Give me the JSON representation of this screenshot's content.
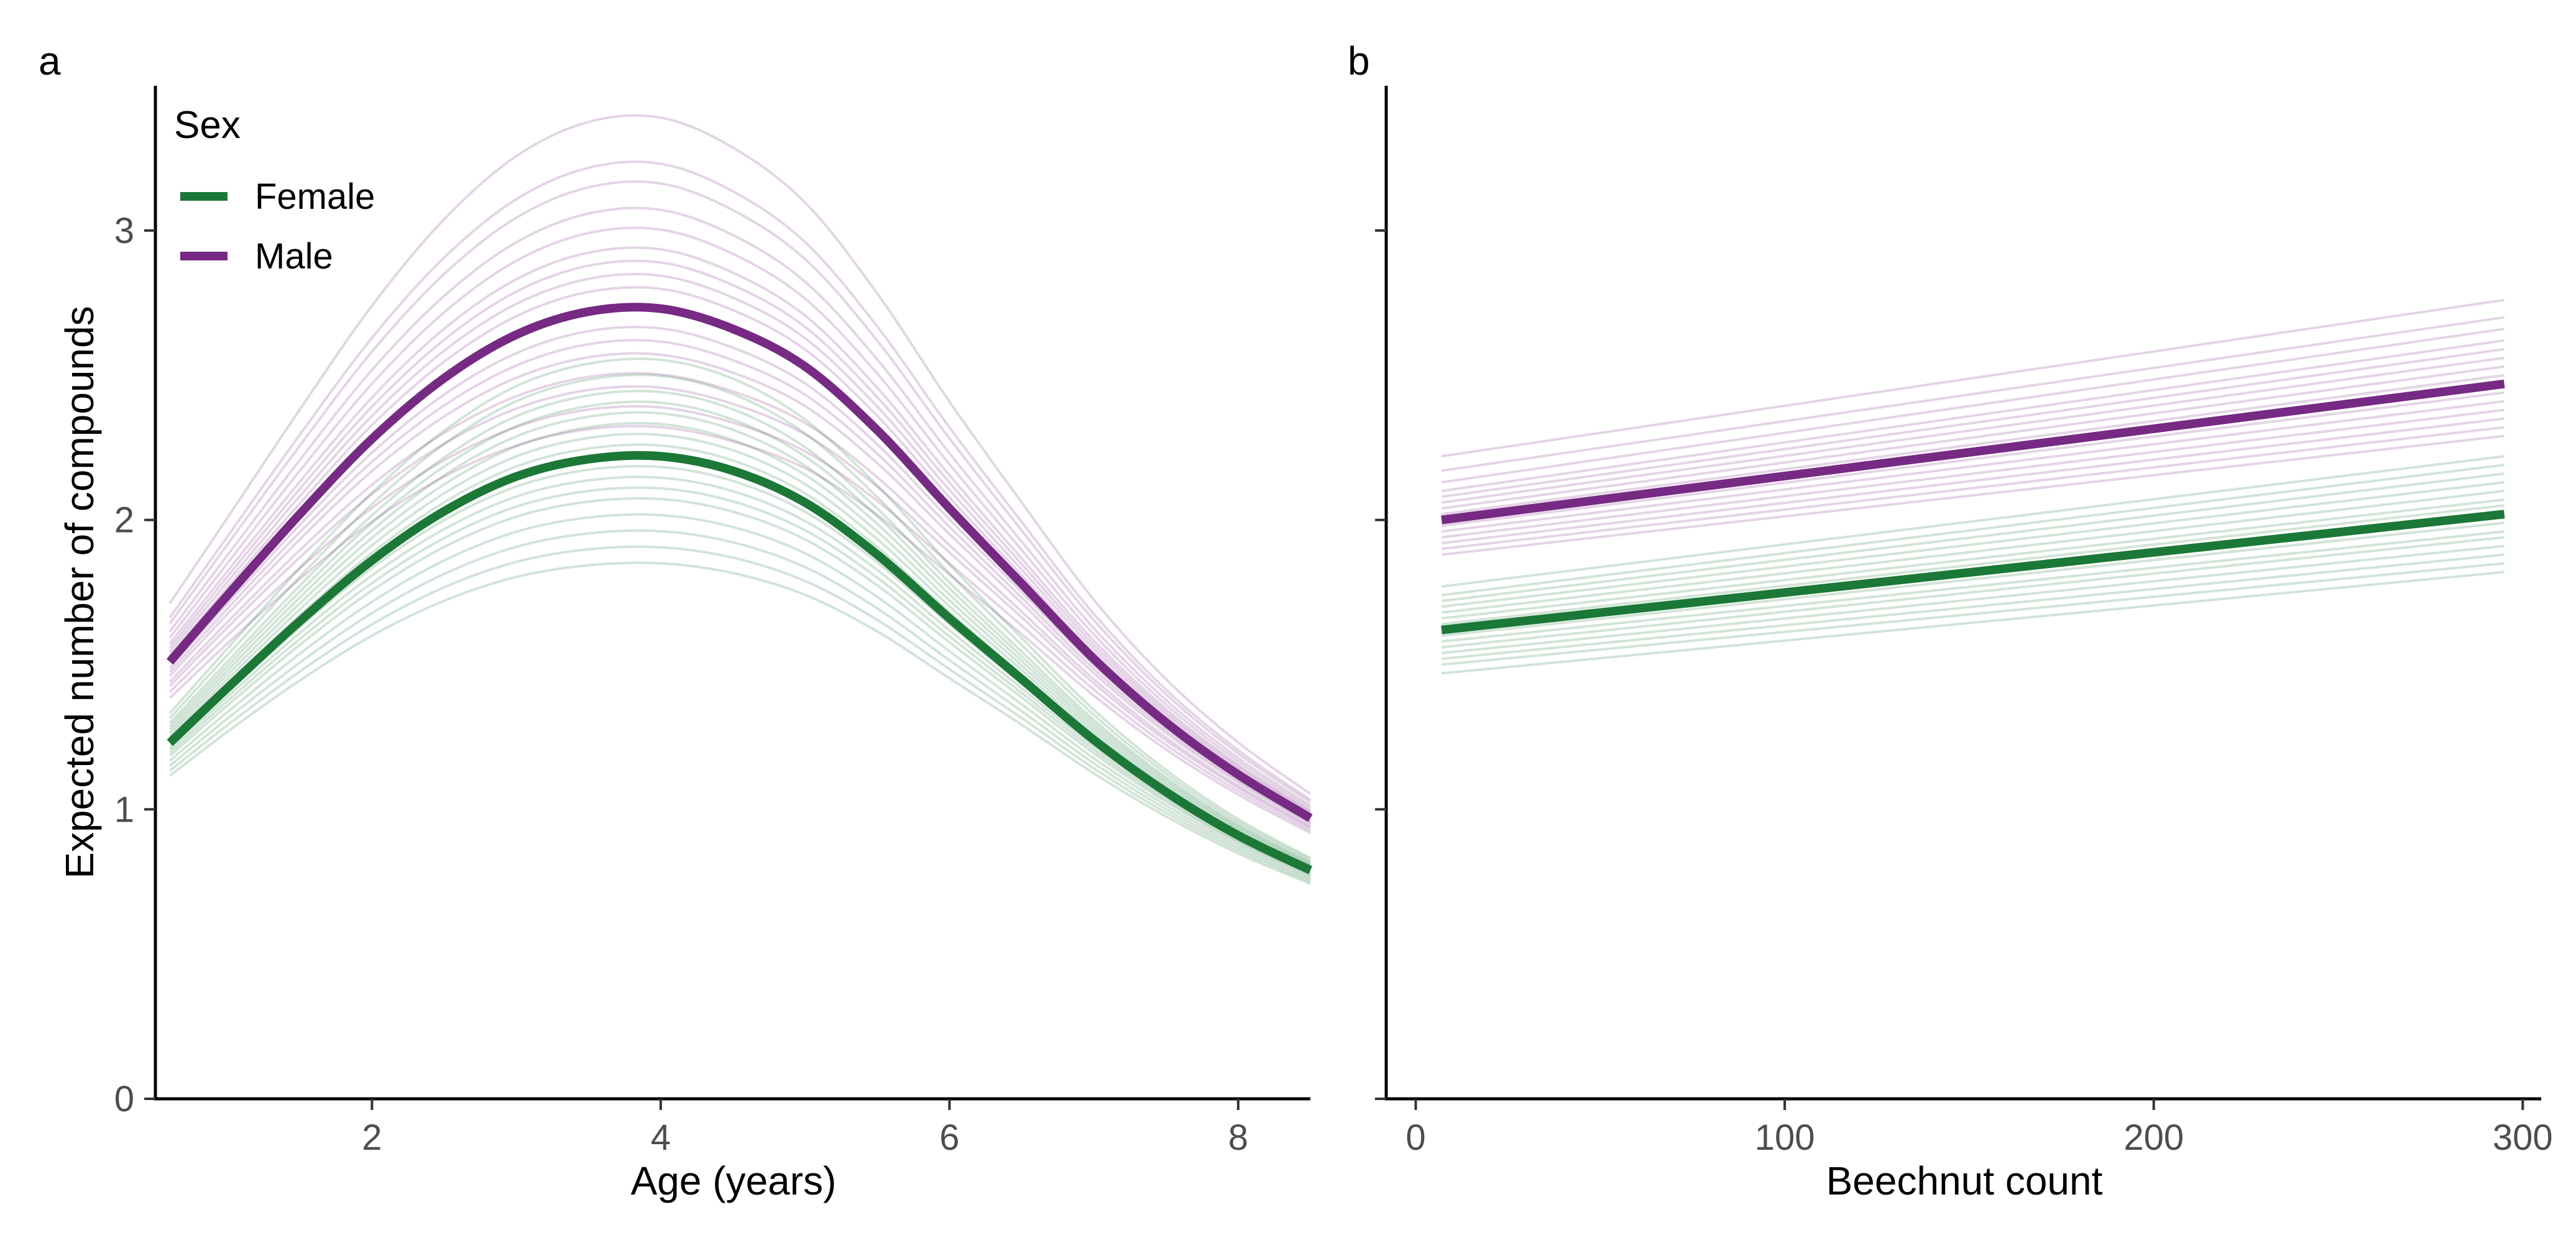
{
  "colors": {
    "female": "#1b7837",
    "male": "#762a83"
  },
  "legend": {
    "title": "Sex",
    "items": [
      {
        "label": "Female",
        "color": "#1b7837"
      },
      {
        "label": "Male",
        "color": "#762a83"
      }
    ]
  },
  "panels": [
    {
      "tag": "a"
    },
    {
      "tag": "b"
    }
  ],
  "chart_data": [
    {
      "type": "line",
      "panel": "a",
      "xlabel": "Age (years)",
      "ylabel": "Expected number of compounds",
      "xlim": [
        0.5,
        8.5
      ],
      "ylim": [
        0,
        3.5
      ],
      "xticks": [
        2,
        4,
        6,
        8
      ],
      "yticks": [
        0,
        1,
        2,
        3
      ],
      "grid": false,
      "legend_position": "top-left",
      "x": [
        0.6,
        1.0,
        1.5,
        2.0,
        2.5,
        3.0,
        3.5,
        4.0,
        4.5,
        5.0,
        5.5,
        6.0,
        6.5,
        7.0,
        7.5,
        8.0,
        8.5
      ],
      "series": [
        {
          "name": "Female",
          "color": "#1b7837",
          "values": [
            1.23,
            1.42,
            1.65,
            1.86,
            2.03,
            2.15,
            2.21,
            2.22,
            2.17,
            2.06,
            1.88,
            1.66,
            1.45,
            1.24,
            1.06,
            0.91,
            0.79
          ]
        },
        {
          "name": "Male",
          "color": "#762a83",
          "values": [
            1.51,
            1.74,
            2.02,
            2.28,
            2.49,
            2.64,
            2.72,
            2.73,
            2.66,
            2.53,
            2.31,
            2.04,
            1.78,
            1.52,
            1.3,
            1.12,
            0.97
          ]
        }
      ],
      "posterior_draws": {
        "female_offsets": [
          -0.2,
          -0.17,
          -0.14,
          -0.11,
          -0.08,
          -0.06,
          -0.04,
          -0.02,
          0.02,
          0.04,
          0.06,
          0.08,
          0.1,
          0.12,
          0.15,
          0.18
        ],
        "male_offsets": [
          -0.18,
          -0.15,
          -0.12,
          -0.1,
          -0.07,
          -0.05,
          -0.03,
          0.03,
          0.05,
          0.07,
          0.09,
          0.12,
          0.15,
          0.19,
          0.22,
          0.29
        ]
      }
    },
    {
      "type": "line",
      "panel": "b",
      "xlabel": "Beechnut count",
      "ylabel": "",
      "xlim": [
        -8,
        305
      ],
      "ylim": [
        0,
        3.5
      ],
      "xticks": [
        0,
        100,
        200,
        300
      ],
      "yticks": [
        0,
        1,
        2,
        3
      ],
      "grid": false,
      "x": [
        7,
        295
      ],
      "series": [
        {
          "name": "Female",
          "color": "#1b7837",
          "values": [
            1.62,
            2.02
          ]
        },
        {
          "name": "Male",
          "color": "#762a83",
          "values": [
            2.0,
            2.47
          ]
        }
      ],
      "posterior_draws": {
        "female_start_offsets": [
          -0.15,
          -0.12,
          -0.1,
          -0.08,
          -0.06,
          -0.04,
          -0.02,
          0.02,
          0.04,
          0.06,
          0.08,
          0.1,
          0.12,
          0.15
        ],
        "female_end_offsets": [
          -0.2,
          -0.17,
          -0.14,
          -0.11,
          -0.08,
          -0.06,
          -0.03,
          0.03,
          0.05,
          0.08,
          0.11,
          0.14,
          0.17,
          0.2
        ],
        "male_start_offsets": [
          -0.12,
          -0.1,
          -0.08,
          -0.06,
          -0.04,
          -0.02,
          0.02,
          0.04,
          0.06,
          0.08,
          0.1,
          0.13,
          0.17,
          0.22
        ],
        "male_end_offsets": [
          -0.18,
          -0.15,
          -0.12,
          -0.09,
          -0.06,
          -0.03,
          0.03,
          0.06,
          0.09,
          0.12,
          0.15,
          0.19,
          0.23,
          0.29
        ]
      }
    }
  ]
}
